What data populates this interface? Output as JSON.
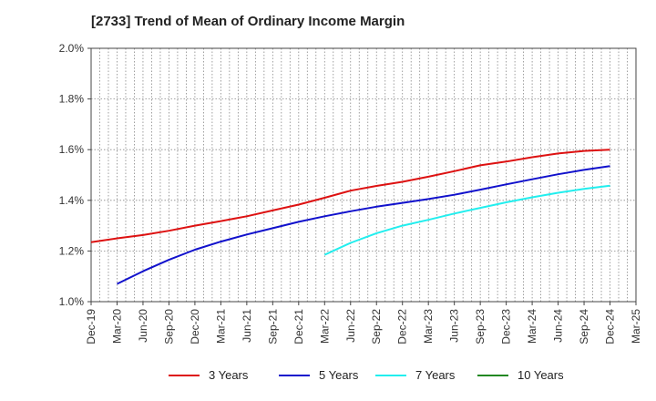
{
  "chart_data": {
    "type": "line",
    "title": "[2733]  Trend of Mean of Ordinary Income Margin",
    "xlabel": "",
    "ylabel": "",
    "ylim": [
      1.0,
      2.0
    ],
    "y_ticks": [
      "1.0%",
      "1.2%",
      "1.4%",
      "1.6%",
      "1.8%",
      "2.0%"
    ],
    "y_tick_values": [
      1.0,
      1.2,
      1.4,
      1.6,
      1.8,
      2.0
    ],
    "x_labels": [
      "Dec-19",
      "Mar-20",
      "Jun-20",
      "Sep-20",
      "Dec-20",
      "Mar-21",
      "Jun-21",
      "Sep-21",
      "Dec-21",
      "Mar-22",
      "Jun-22",
      "Sep-22",
      "Dec-22",
      "Mar-23",
      "Jun-23",
      "Sep-23",
      "Dec-23",
      "Mar-24",
      "Jun-24",
      "Sep-24",
      "Dec-24",
      "Mar-25"
    ],
    "grid": true,
    "legend_position": "bottom",
    "series": [
      {
        "name": "3 Years",
        "color": "#dd1111",
        "values": [
          1.235,
          1.25,
          1.263,
          1.28,
          1.3,
          1.318,
          1.337,
          1.36,
          1.383,
          1.41,
          1.438,
          1.457,
          1.473,
          1.493,
          1.515,
          1.538,
          1.553,
          1.57,
          1.585,
          1.595,
          1.6,
          null
        ]
      },
      {
        "name": "5 Years",
        "color": "#1111cc",
        "values": [
          null,
          1.07,
          1.12,
          1.165,
          1.205,
          1.237,
          1.265,
          1.29,
          1.315,
          1.337,
          1.357,
          1.375,
          1.39,
          1.405,
          1.422,
          1.442,
          1.463,
          1.483,
          1.503,
          1.52,
          1.535,
          null
        ]
      },
      {
        "name": "7 Years",
        "color": "#22eeee",
        "values": [
          null,
          null,
          null,
          null,
          null,
          null,
          null,
          null,
          null,
          1.185,
          1.232,
          1.27,
          1.3,
          1.323,
          1.348,
          1.37,
          1.392,
          1.412,
          1.43,
          1.445,
          1.458,
          null
        ]
      },
      {
        "name": "10 Years",
        "color": "#228822",
        "values": [
          null,
          null,
          null,
          null,
          null,
          null,
          null,
          null,
          null,
          null,
          null,
          null,
          null,
          null,
          null,
          null,
          null,
          null,
          null,
          null,
          null,
          null
        ]
      }
    ]
  }
}
